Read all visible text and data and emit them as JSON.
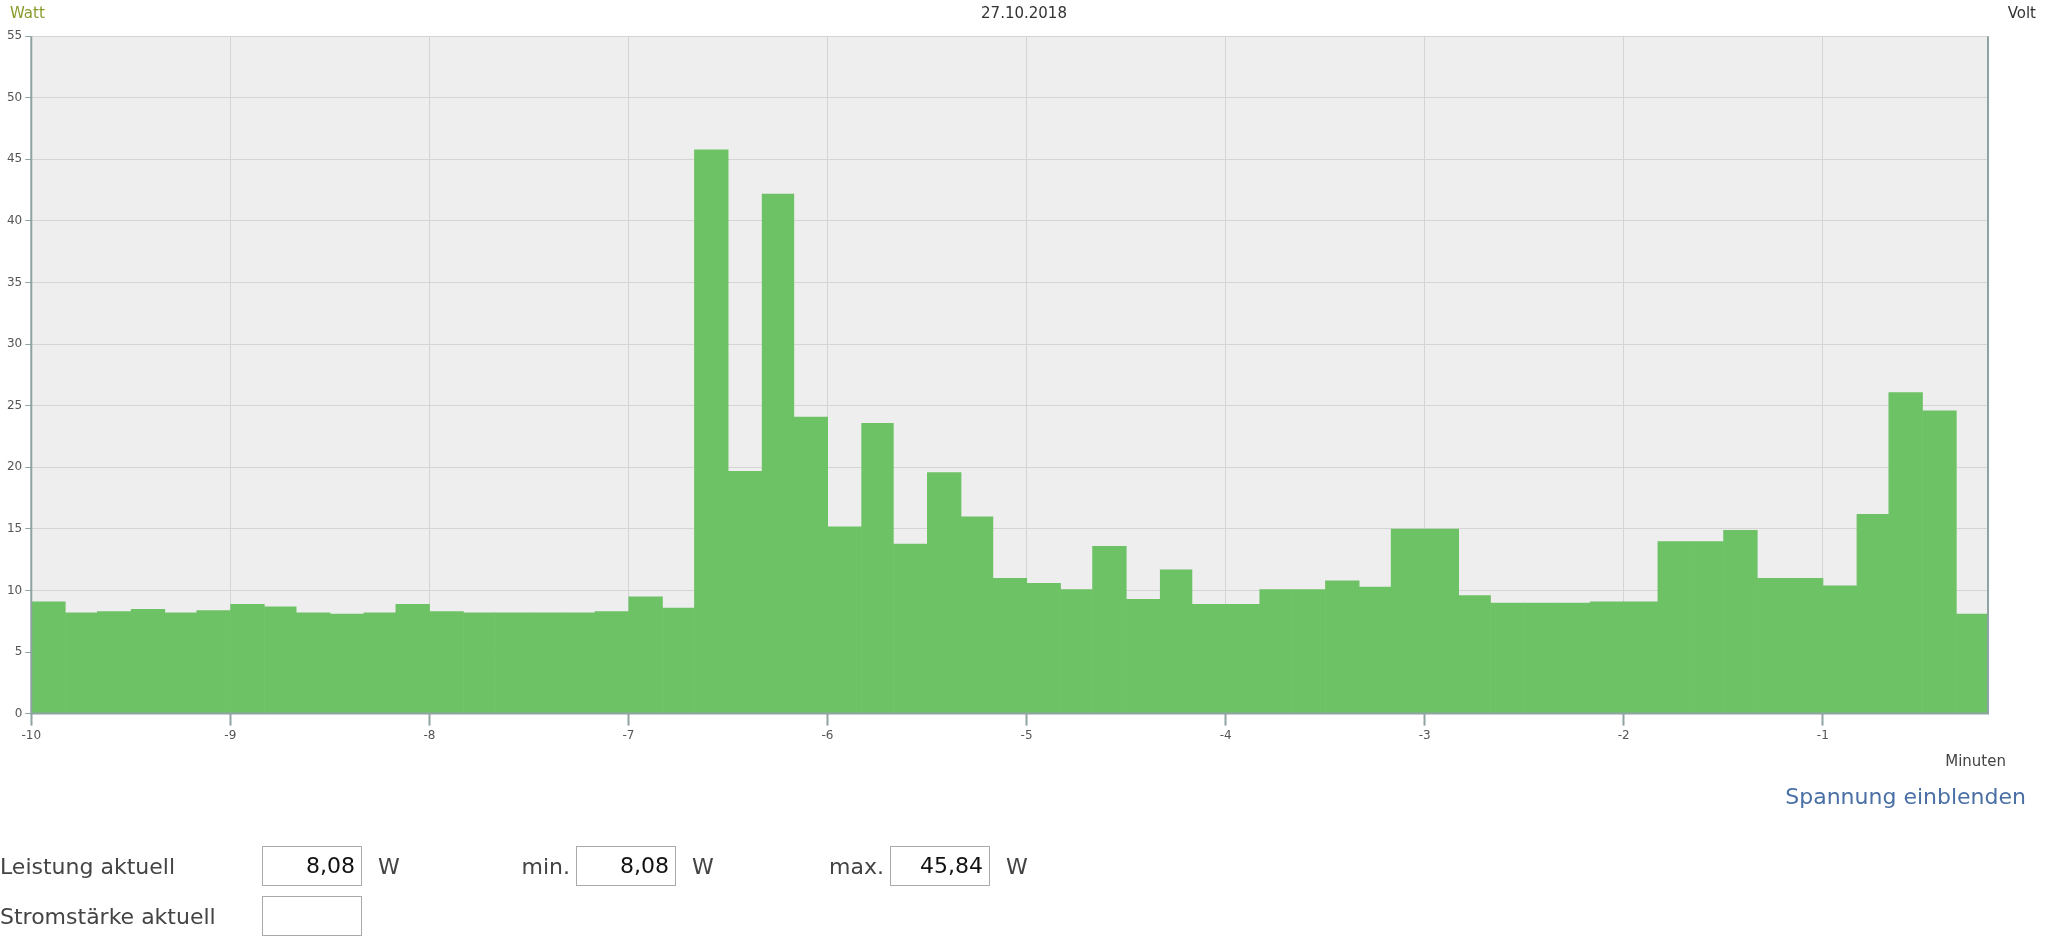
{
  "chart_data": {
    "type": "histogram",
    "title": "27.10.2018",
    "ylabel": "Watt",
    "y2label": "Volt",
    "xlabel": "Minuten",
    "bins": [
      -10,
      -9.83,
      -9.67,
      -9.5,
      -9.33,
      -9.17,
      -9,
      -8.83,
      -8.67,
      -8.5,
      -8.33,
      -8.17,
      -8,
      -7.83,
      -7.67,
      -7.5,
      -7.33,
      -7.17,
      -7,
      -6.83,
      -6.67,
      -6.5,
      -6.33,
      -6.17,
      -6,
      -5.83,
      -5.67,
      -5.5,
      -5.33,
      -5.17,
      -5,
      -4.83,
      -4.67,
      -4.5,
      -4.33,
      -4.17,
      -4,
      -3.83,
      -3.67,
      -3.5,
      -3.33,
      -3.17,
      -3,
      -2.83,
      -2.67,
      -2.5,
      -2.33,
      -2.17,
      -2,
      -1.83,
      -1.67,
      -1.5,
      -1.33,
      -1.17,
      -1,
      -0.83,
      -0.67,
      -0.5,
      -0.33,
      -0.17
    ],
    "values": [
      9.1,
      8.2,
      8.3,
      8.5,
      8.2,
      8.4,
      8.9,
      8.7,
      8.2,
      8.1,
      8.2,
      8.9,
      8.3,
      8.2,
      8.2,
      8.2,
      8.2,
      8.3,
      9.5,
      8.6,
      45.8,
      19.7,
      42.2,
      24.1,
      15.2,
      23.6,
      13.8,
      19.6,
      16.0,
      11.0,
      10.6,
      10.1,
      13.6,
      9.3,
      11.7,
      8.9,
      8.9,
      10.1,
      10.1,
      10.8,
      10.3,
      15.0,
      15.0,
      9.6,
      9.0,
      9.0,
      9.0,
      9.1,
      9.1,
      14.0,
      14.0,
      14.9,
      11.0,
      11.0,
      10.4,
      16.2,
      26.1,
      24.6,
      8.1
    ],
    "color": "#6cc264",
    "xlim": [
      -10,
      -0.17
    ],
    "xticks": [
      -10,
      -9,
      -8,
      -7,
      -6,
      -5,
      -4,
      -3,
      -2,
      -1
    ],
    "ylim": [
      0,
      55
    ],
    "yticks": [
      0,
      5,
      10,
      15,
      20,
      25,
      30,
      35,
      40,
      45,
      50,
      55
    ],
    "grid": true,
    "legend": false,
    "annotations": [
      "Spannung einblenden",
      "Leistung aktuell",
      "8,08",
      "W",
      "min.",
      "8,08",
      "W",
      "max.",
      "45,84",
      "W",
      "Stromstärke aktuell"
    ]
  }
}
